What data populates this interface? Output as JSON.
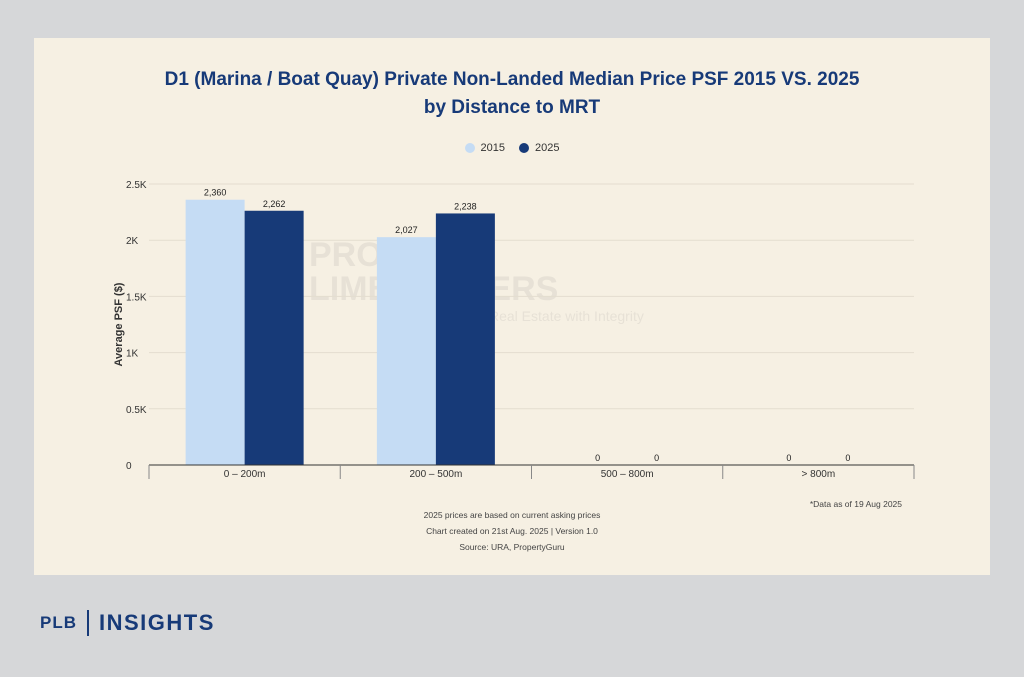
{
  "brand": {
    "left": "PLB",
    "right": "INSIGHTS"
  },
  "watermark": {
    "line1": "PROPERTY",
    "line2": "LIMBROTHERS",
    "tagline": "Real Estate with Integrity"
  },
  "notes": {
    "data_as_of": "*Data as of 19 Aug 2025",
    "asking": "2025 prices are based on current asking prices",
    "created": "Chart created on 21st Aug. 2025 | Version 1.0",
    "source": "Source: URA, PropertyGuru"
  },
  "colors": {
    "s2015": "#c5dcf4",
    "s2025": "#173a78",
    "text": "#173a78"
  },
  "chart_data": {
    "type": "bar",
    "title_line1": "D1 (Marina / Boat Quay) Private Non-Landed Median Price PSF 2015 VS. 2025",
    "title_line2": "by Distance to MRT",
    "categories": [
      "0 – 200m",
      "200 – 500m",
      "500 – 800m",
      "> 800m"
    ],
    "series": [
      {
        "name": "2015",
        "values": [
          2360,
          2027,
          0,
          0
        ],
        "labels": [
          "2,360",
          "2,027",
          "0",
          "0"
        ]
      },
      {
        "name": "2025",
        "values": [
          2262,
          2238,
          0,
          0
        ],
        "labels": [
          "2,262",
          "2,238",
          "0",
          "0"
        ]
      }
    ],
    "ylabel": "Average PSF ($)",
    "ylim": [
      0,
      2500
    ],
    "yticks": [
      0,
      500,
      1000,
      1500,
      2000,
      2500
    ],
    "ytick_labels": [
      "0",
      "0.5K",
      "1K",
      "1.5K",
      "2K",
      "2.5K"
    ],
    "grid": true,
    "legend_position": "top-center"
  }
}
